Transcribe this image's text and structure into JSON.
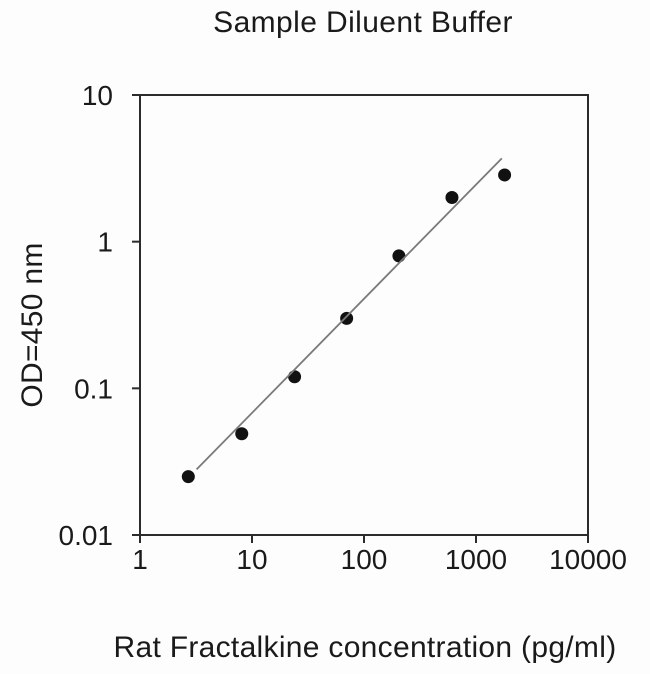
{
  "chart": {
    "title": "Sample Diluent Buffer",
    "xlabel": "Rat Fractalkine concentration (pg/ml)",
    "ylabel": "OD=450 nm"
  },
  "chart_data": {
    "type": "scatter",
    "title": "Sample Diluent Buffer",
    "xlabel": "Rat Fractalkine concentration (pg/ml)",
    "ylabel": "OD=450 nm",
    "x_scale": "log",
    "y_scale": "log",
    "xlim": [
      1,
      10000
    ],
    "ylim": [
      0.01,
      10
    ],
    "grid": false,
    "legend": false,
    "x_ticks": [
      {
        "value": 1,
        "label": "1"
      },
      {
        "value": 10,
        "label": "10"
      },
      {
        "value": 100,
        "label": "100"
      },
      {
        "value": 1000,
        "label": "1000"
      },
      {
        "value": 10000,
        "label": "10000"
      }
    ],
    "y_ticks": [
      {
        "value": 0.01,
        "label": "0.01"
      },
      {
        "value": 0.1,
        "label": "0.1"
      },
      {
        "value": 1,
        "label": "1"
      },
      {
        "value": 10,
        "label": "10"
      }
    ],
    "series": [
      {
        "name": "standard-points",
        "type": "scatter",
        "marker": "filled-circle",
        "marker_radius": 6.5,
        "color": "#111111",
        "points": [
          {
            "x": 2.7,
            "y": 0.025
          },
          {
            "x": 8.1,
            "y": 0.049
          },
          {
            "x": 24,
            "y": 0.12
          },
          {
            "x": 70,
            "y": 0.3
          },
          {
            "x": 205,
            "y": 0.8
          },
          {
            "x": 610,
            "y": 2.0
          },
          {
            "x": 1800,
            "y": 2.85
          }
        ]
      },
      {
        "name": "regression-line",
        "type": "line",
        "color": "#7a7a7a",
        "width": 1.8,
        "points": [
          {
            "x": 3.2,
            "y": 0.028
          },
          {
            "x": 1700,
            "y": 3.7
          }
        ]
      }
    ]
  },
  "colors": {
    "background": "#fdfdfd",
    "axis": "#2b2b2b",
    "text": "#1a1a1a",
    "marker": "#111111",
    "fit_line": "#7a7a7a"
  }
}
